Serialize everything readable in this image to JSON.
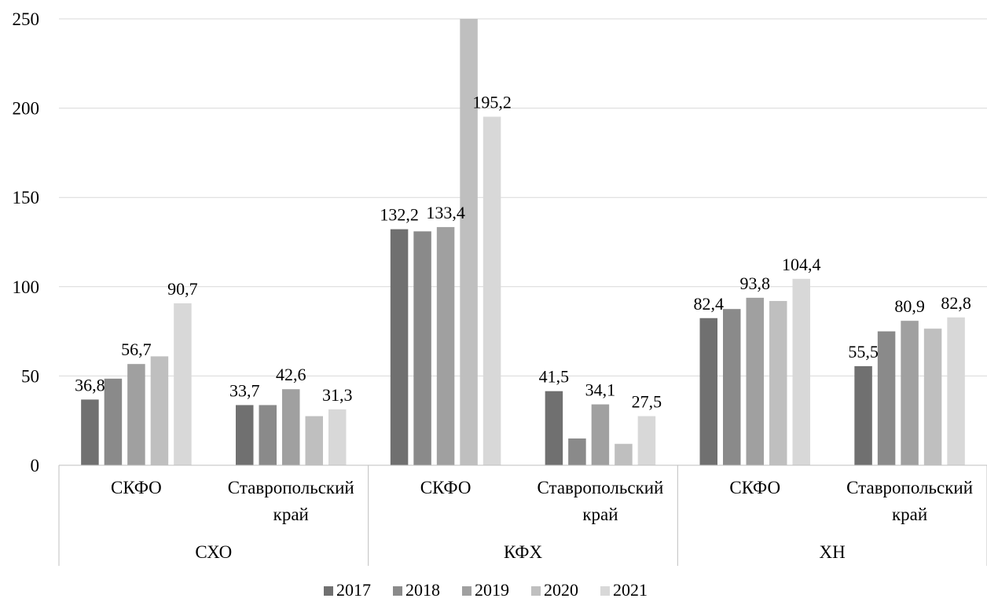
{
  "chart_data": {
    "type": "bar",
    "title": "",
    "xlabel": "",
    "ylabel": "",
    "ylim": [
      0,
      250
    ],
    "yticks": [
      0,
      50,
      100,
      150,
      200,
      250
    ],
    "grid": true,
    "legend_position": "bottom",
    "groups": [
      {
        "label": "СХО",
        "subcategories": [
          {
            "label": "СКФО"
          },
          {
            "label": "Ставропольский край"
          }
        ]
      },
      {
        "label": "КФХ",
        "subcategories": [
          {
            "label": "СКФО"
          },
          {
            "label": "Ставропольский край"
          }
        ]
      },
      {
        "label": "ХН",
        "subcategories": [
          {
            "label": "СКФО"
          },
          {
            "label": "Ставропольский край"
          }
        ]
      }
    ],
    "categories": [
      "СХО / СКФО",
      "СХО / Ставропольский край",
      "КФХ / СКФО",
      "КФХ / Ставропольский край",
      "ХН / СКФО",
      "ХН / Ставропольский край"
    ],
    "series": [
      {
        "name": "2017",
        "color": "#707070",
        "values": [
          36.8,
          33.7,
          132.2,
          41.5,
          82.4,
          55.5
        ],
        "labels": [
          "36,8",
          "33,7",
          "132,2",
          "41,5",
          "82,4",
          "55,5"
        ]
      },
      {
        "name": "2018",
        "color": "#8a8a8a",
        "values": [
          48.5,
          33.7,
          131.0,
          15.0,
          87.5,
          75.0
        ],
        "labels": [
          "",
          "",
          "",
          "",
          "",
          ""
        ]
      },
      {
        "name": "2019",
        "color": "#a0a0a0",
        "values": [
          56.7,
          42.6,
          133.4,
          34.1,
          93.8,
          80.9
        ],
        "labels": [
          "56,7",
          "42,6",
          "133,4",
          "34,1",
          "93,8",
          "80,9"
        ]
      },
      {
        "name": "2020",
        "color": "#bfbfbf",
        "values": [
          61.0,
          27.5,
          250.0,
          12.0,
          92.0,
          76.5
        ],
        "labels": [
          "",
          "",
          "",
          "",
          "",
          ""
        ]
      },
      {
        "name": "2021",
        "color": "#d8d8d8",
        "values": [
          90.7,
          31.3,
          195.2,
          27.5,
          104.4,
          82.8
        ],
        "labels": [
          "90,7",
          "31,3",
          "195,2",
          "27,5",
          "104,4",
          "82,8"
        ]
      }
    ]
  }
}
